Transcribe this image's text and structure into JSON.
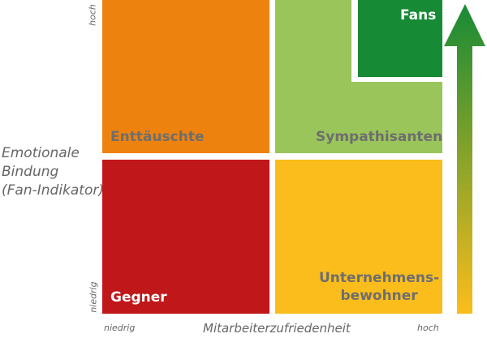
{
  "axes": {
    "y_label_lines": [
      "Emotionale",
      "Bindung",
      "(Fan-Indikator)"
    ],
    "y_high": "hoch",
    "y_low": "niedrig",
    "x_label": "Mitarbeiterzufriedenheit",
    "x_low": "niedrig",
    "x_high": "hoch"
  },
  "quadrants": {
    "top_left": {
      "label": "Enttäuschte",
      "color": "#ee820e"
    },
    "top_right": {
      "label": "Sympathisanten",
      "color": "#99c55a"
    },
    "top_right_corner": {
      "label": "Fans",
      "color": "#178a36"
    },
    "bottom_left": {
      "label": "Gegner",
      "color": "#c0171a"
    },
    "bottom_right": {
      "label_lines": [
        "Unternehmens-",
        "bewohner"
      ],
      "color": "#fbbd1c"
    }
  },
  "arrow": {
    "gradient_top": "#178a36",
    "gradient_bottom": "#fbbd1c"
  }
}
